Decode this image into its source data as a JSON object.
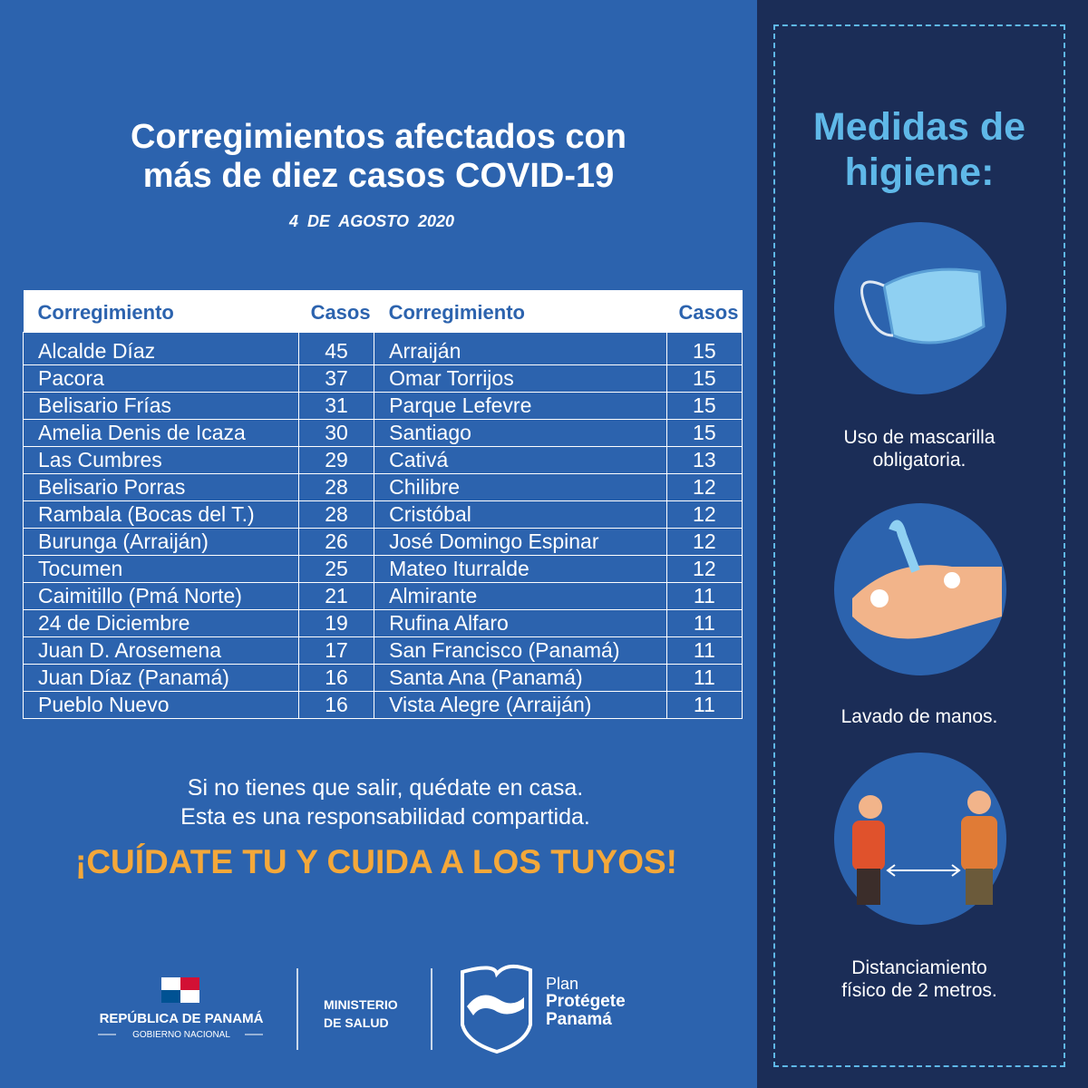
{
  "header": {
    "title_line1": "Corregimientos afectados con",
    "title_line2": "más de diez casos COVID-19",
    "date": "4  DE  AGOSTO  2020"
  },
  "table": {
    "headers": [
      "Corregimiento",
      "Casos",
      "Corregimiento",
      "Casos"
    ],
    "rows": [
      [
        "Alcalde Díaz",
        45,
        "Arraiján",
        15
      ],
      [
        "Pacora",
        37,
        "Omar Torrijos",
        15
      ],
      [
        "Belisario Frías",
        31,
        "Parque Lefevre",
        15
      ],
      [
        "Amelia Denis de Icaza",
        30,
        "Santiago",
        15
      ],
      [
        "Las Cumbres",
        29,
        "Cativá",
        13
      ],
      [
        "Belisario Porras",
        28,
        "Chilibre",
        12
      ],
      [
        "Rambala (Bocas del T.)",
        28,
        "Cristóbal",
        12
      ],
      [
        "Burunga (Arraiján)",
        26,
        "José Domingo Espinar",
        12
      ],
      [
        "Tocumen",
        25,
        "Mateo Iturralde",
        12
      ],
      [
        "Caimitillo (Pmá Norte)",
        21,
        "Almirante",
        11
      ],
      [
        "24 de Diciembre",
        19,
        "Rufina Alfaro",
        11
      ],
      [
        "Juan D. Arosemena",
        17,
        "San Francisco (Panamá)",
        11
      ],
      [
        "Juan Díaz (Panamá)",
        16,
        "Santa Ana (Panamá)",
        11
      ],
      [
        "Pueblo Nuevo",
        16,
        "Vista Alegre (Arraiján)",
        11
      ]
    ]
  },
  "footer": {
    "line1": "Si no tienes que salir, quédate en casa.",
    "line2": "Esta es una responsabilidad compartida.",
    "slogan": "¡CUÍDATE TU Y CUIDA A LOS TUYOS!"
  },
  "logos": {
    "republica": "REPÚBLICA DE PANAMÁ",
    "gobierno": "GOBIERNO NACIONAL",
    "ministerio_line1": "MINISTERIO",
    "ministerio_line2": "DE SALUD",
    "plan": "Plan",
    "protegete": "Protégete",
    "panama": "Panamá"
  },
  "sidebar": {
    "title_line1": "Medidas de",
    "title_line2": "higiene:",
    "items": [
      [
        "Uso de mascarilla",
        "obligatoria."
      ],
      [
        "Lavado de manos."
      ],
      [
        "Distanciamiento",
        "físico de 2 metros."
      ]
    ]
  }
}
